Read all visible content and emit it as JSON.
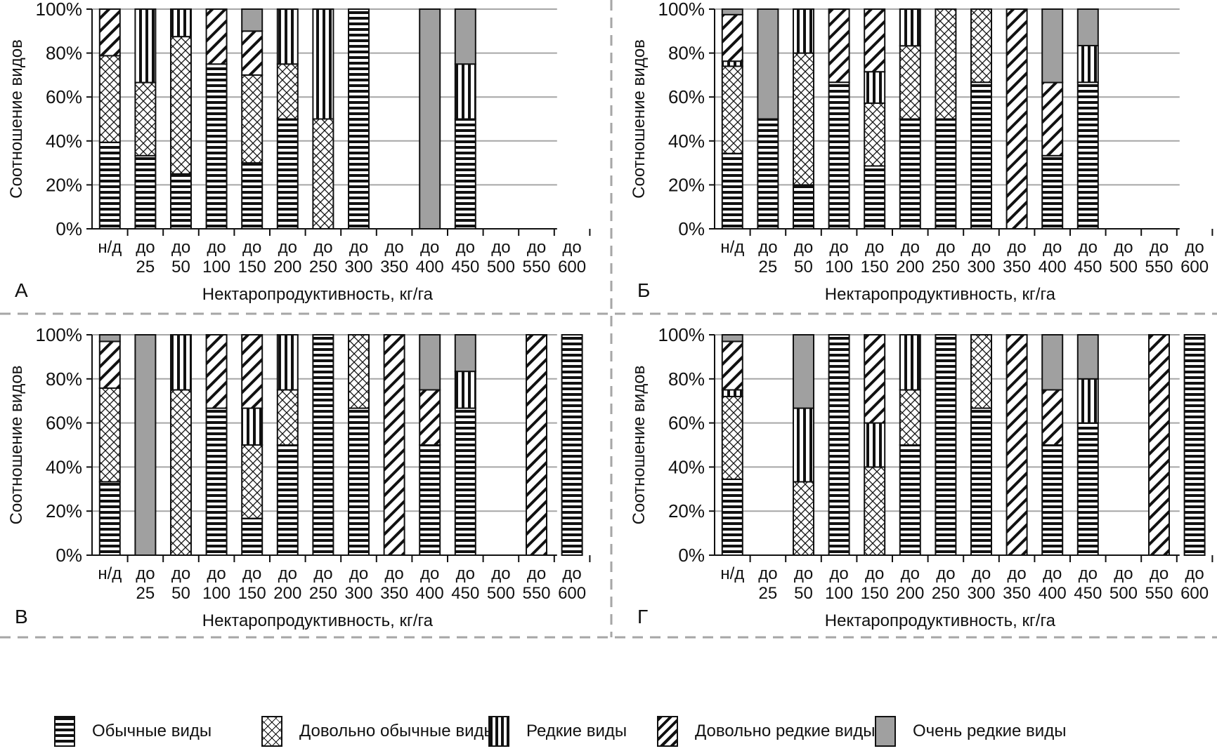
{
  "chart_data": {
    "type": "bar",
    "stacked": true,
    "categories": [
      "н/д|",
      "до|25",
      "до|50",
      "до|100",
      "до|150",
      "до|200",
      "до|250",
      "до|300",
      "до|350",
      "до|400",
      "до|450",
      "до|500",
      "до|550",
      "до|600"
    ],
    "category_labels": [
      [
        "н/д",
        ""
      ],
      [
        "до",
        "25"
      ],
      [
        "до",
        "50"
      ],
      [
        "до",
        "100"
      ],
      [
        "до",
        "150"
      ],
      [
        "до",
        "200"
      ],
      [
        "до",
        "250"
      ],
      [
        "до",
        "300"
      ],
      [
        "до",
        "350"
      ],
      [
        "до",
        "400"
      ],
      [
        "до",
        "450"
      ],
      [
        "до",
        "500"
      ],
      [
        "до",
        "550"
      ],
      [
        "до",
        "600"
      ]
    ],
    "yticks": [
      "0%",
      "20%",
      "40%",
      "60%",
      "80%",
      "100%"
    ],
    "ylim": [
      0,
      100
    ],
    "ylabel": "Соотношение видов",
    "xlabel": "Нектаропродуктивность, кг/га",
    "grid": true,
    "legend_position": "bottom",
    "legend": [
      {
        "key": "common",
        "label": "Обычные виды",
        "pattern": "horizontal-stripes"
      },
      {
        "key": "fairly_common",
        "label": "Довольно обычные виды",
        "pattern": "crosshatch"
      },
      {
        "key": "rare",
        "label": "Редкие виды",
        "pattern": "vertical-stripes"
      },
      {
        "key": "fairly_rare",
        "label": "Довольно редкие виды",
        "pattern": "diagonal-stripes"
      },
      {
        "key": "very_rare",
        "label": "Очень редкие виды",
        "pattern": "solid-gray"
      }
    ],
    "colors": {
      "very_rare": "#a0a0a0",
      "ink": "#111111",
      "grid": "#a6a6a6",
      "divider": "#a6a6a6"
    },
    "panels": [
      {
        "letter": "А",
        "series": {
          "common": [
            39.4,
            33.3,
            25,
            75,
            30,
            50,
            0,
            100,
            0,
            0,
            50,
            0,
            0,
            0
          ],
          "fairly_common": [
            39.4,
            33.3,
            62.5,
            0,
            40,
            25,
            50,
            0,
            0,
            0,
            0,
            0,
            0,
            0
          ],
          "rare": [
            0,
            33.4,
            12.5,
            0,
            0,
            25,
            50,
            0,
            0,
            0,
            25,
            0,
            0,
            0
          ],
          "fairly_rare": [
            21.2,
            0,
            0,
            25,
            20,
            0,
            0,
            0,
            0,
            0,
            0,
            0,
            0,
            0
          ],
          "very_rare": [
            0,
            0,
            0,
            0,
            10,
            0,
            0,
            0,
            0,
            100,
            25,
            0,
            0,
            0
          ]
        }
      },
      {
        "letter": "Б",
        "series": {
          "common": [
            34.3,
            50,
            20,
            66.7,
            28.6,
            50,
            50,
            66.7,
            0,
            33.3,
            66.7,
            0,
            0,
            0
          ],
          "fairly_common": [
            39.7,
            0,
            60,
            0,
            28.6,
            33.3,
            50,
            33.3,
            0,
            0,
            0,
            0,
            0,
            0
          ],
          "rare": [
            2.3,
            0,
            20,
            0,
            14.3,
            16.7,
            0,
            0,
            0,
            0,
            16.7,
            0,
            0,
            0
          ],
          "fairly_rare": [
            21.2,
            0,
            0,
            33.3,
            28.5,
            0,
            0,
            0,
            100,
            33.3,
            0,
            0,
            0,
            0
          ],
          "very_rare": [
            2.5,
            50,
            0,
            0,
            0,
            0,
            0,
            0,
            0,
            33.4,
            16.6,
            0,
            0,
            0
          ]
        }
      },
      {
        "letter": "В",
        "series": {
          "common": [
            33.3,
            0,
            0,
            66.7,
            16.7,
            50,
            100,
            66.7,
            0,
            50,
            66.7,
            0,
            0,
            100
          ],
          "fairly_common": [
            42.5,
            0,
            75,
            0,
            33.3,
            25,
            0,
            33.3,
            0,
            0,
            0,
            0,
            0,
            0
          ],
          "rare": [
            0,
            0,
            25,
            0,
            16.7,
            25,
            0,
            0,
            0,
            0,
            16.7,
            0,
            0,
            0
          ],
          "fairly_rare": [
            21.2,
            0,
            0,
            33.3,
            33.3,
            0,
            0,
            0,
            100,
            25,
            0,
            0,
            100,
            0
          ],
          "very_rare": [
            3,
            100,
            0,
            0,
            0,
            0,
            0,
            0,
            0,
            25,
            16.6,
            0,
            0,
            0
          ]
        }
      },
      {
        "letter": "Г",
        "series": {
          "common": [
            34.5,
            0,
            0,
            100,
            0,
            50,
            100,
            66.7,
            0,
            50,
            60,
            0,
            0,
            100
          ],
          "fairly_common": [
            37.5,
            0,
            33.3,
            0,
            40,
            25,
            0,
            33.3,
            0,
            0,
            0,
            0,
            0,
            0
          ],
          "rare": [
            3,
            0,
            33.4,
            0,
            20,
            25,
            0,
            0,
            0,
            0,
            20,
            0,
            0,
            0
          ],
          "fairly_rare": [
            22,
            0,
            0,
            0,
            40,
            0,
            0,
            0,
            100,
            25,
            0,
            0,
            100,
            0
          ],
          "very_rare": [
            3,
            0,
            33.3,
            0,
            0,
            0,
            0,
            0,
            0,
            25,
            20,
            0,
            0,
            0
          ]
        }
      }
    ]
  }
}
